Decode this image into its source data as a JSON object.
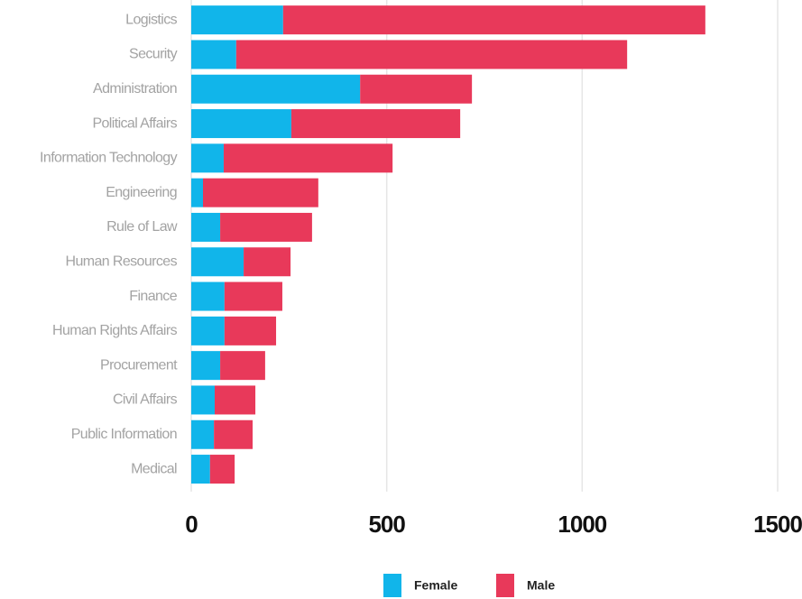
{
  "chart_data": {
    "type": "bar",
    "orientation": "horizontal",
    "stacked": true,
    "categories": [
      "Logistics",
      "Security",
      "Administration",
      "Political Affairs",
      "Information Technology",
      "Engineering",
      "Rule of Law",
      "Human Resources",
      "Finance",
      "Human Rights Affairs",
      "Procurement",
      "Civil Affairs",
      "Public Information",
      "Medical"
    ],
    "series": [
      {
        "name": "Female",
        "color": "#11b5ea",
        "values": [
          235,
          115,
          432,
          256,
          83,
          30,
          74,
          134,
          85,
          85,
          74,
          60,
          58,
          48
        ]
      },
      {
        "name": "Male",
        "color": "#e8395a",
        "values": [
          1080,
          1000,
          286,
          432,
          432,
          295,
          235,
          120,
          148,
          132,
          115,
          104,
          99,
          63
        ]
      }
    ],
    "xlim": [
      0,
      1500
    ],
    "xticks": [
      0,
      500,
      1000,
      1500
    ],
    "grid": true,
    "legend": "bottom"
  }
}
